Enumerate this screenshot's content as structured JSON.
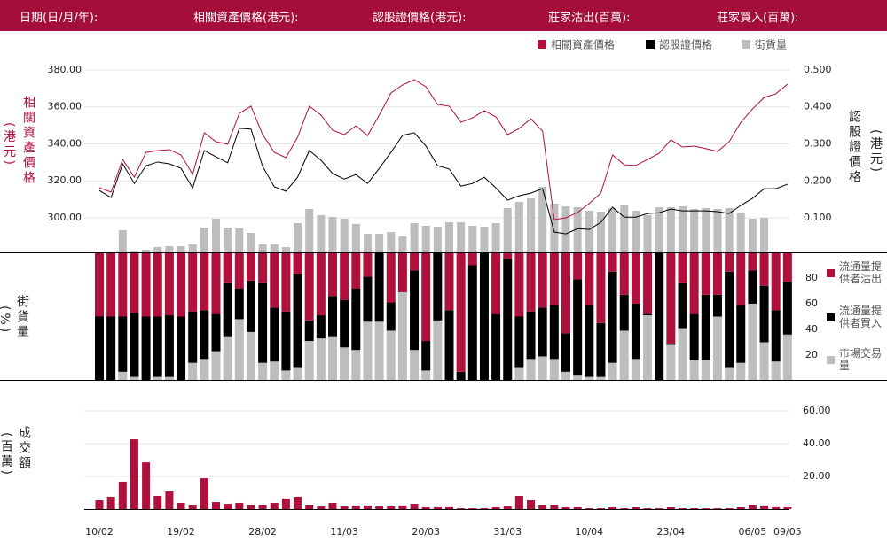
{
  "header": {
    "fields": [
      "日期(日/月/年):",
      "相關資產價格(港元):",
      "認股證價格(港元):",
      "莊家沽出(百萬):",
      "莊家買入(百萬):"
    ]
  },
  "chart_data": [
    {
      "type": "line",
      "ylabel": "相關資產價格",
      "ylabel_unit": "(港元)",
      "y2label": "認股證價格",
      "y2label_unit": "(港元)",
      "ylim": [
        281.3,
        389.1
      ],
      "yticks": [
        {
          "value": 300,
          "label": "300.00"
        },
        {
          "value": 320,
          "label": "320.00"
        },
        {
          "value": 340,
          "label": "340.00"
        },
        {
          "value": 360,
          "label": "360.00"
        },
        {
          "value": 380,
          "label": "380.00"
        }
      ],
      "y2lim": [
        0.007,
        0.545
      ],
      "y2ticks": [
        {
          "value": 0.1,
          "label": "0.100"
        },
        {
          "value": 0.2,
          "label": "0.200"
        },
        {
          "value": 0.3,
          "label": "0.300"
        },
        {
          "value": 0.4,
          "label": "0.400"
        },
        {
          "value": 0.5,
          "label": "0.500"
        }
      ],
      "y3lim": [
        0,
        225
      ],
      "grid": true,
      "legend": "top-right",
      "series": [
        {
          "name": "相關資產價格",
          "type": "line",
          "color": "#b0103c",
          "values": [
            316.3,
            313.9,
            331.6,
            322.0,
            335.4,
            336.4,
            336.9,
            334.0,
            323.5,
            346.0,
            341.2,
            339.8,
            356.5,
            360.4,
            345.0,
            335.4,
            332.6,
            343.6,
            360.4,
            355.6,
            347.4,
            345.0,
            349.8,
            344.5,
            355.6,
            367.5,
            371.9,
            374.7,
            370.9,
            361.3,
            360.4,
            351.7,
            354.1,
            358.0,
            354.6,
            345.0,
            348.4,
            353.6,
            346.9,
            299.0,
            300.0,
            302.9,
            307.7,
            313.4,
            334.0,
            328.7,
            328.3,
            331.6,
            335.0,
            342.2,
            338.3,
            338.8,
            337.4,
            335.9,
            341.2,
            351.7,
            358.9,
            365.1,
            367.1,
            372.3
          ]
        },
        {
          "name": "認股證價格",
          "type": "line",
          "axis": "y2",
          "color": "#000000",
          "values": [
            0.174,
            0.155,
            0.246,
            0.193,
            0.241,
            0.251,
            0.246,
            0.234,
            0.181,
            0.282,
            0.265,
            0.249,
            0.342,
            0.34,
            0.239,
            0.184,
            0.172,
            0.21,
            0.282,
            0.256,
            0.22,
            0.205,
            0.217,
            0.193,
            0.234,
            0.277,
            0.323,
            0.33,
            0.294,
            0.241,
            0.232,
            0.186,
            0.193,
            0.21,
            0.181,
            0.148,
            0.16,
            0.167,
            0.179,
            0.062,
            0.057,
            0.071,
            0.069,
            0.088,
            0.129,
            0.102,
            0.102,
            0.112,
            0.114,
            0.124,
            0.119,
            0.119,
            0.119,
            0.117,
            0.112,
            0.134,
            0.153,
            0.179,
            0.179,
            0.191
          ]
        },
        {
          "name": "街貨量",
          "type": "bar",
          "axis": "y3",
          "color": "#bdbdbd",
          "values": [
            0,
            0,
            25,
            2,
            3,
            6,
            7,
            7,
            9,
            28,
            38,
            28,
            27,
            22,
            9,
            9,
            6,
            33,
            49,
            42,
            40,
            38,
            32,
            21,
            21,
            23,
            18,
            33,
            30,
            29,
            34,
            34,
            30,
            29,
            33,
            50,
            57,
            61,
            74,
            55,
            52,
            51,
            47,
            46,
            50,
            53,
            47,
            42,
            51,
            51,
            52,
            49,
            50,
            49,
            50,
            44,
            38,
            39,
            0,
            0
          ]
        }
      ]
    },
    {
      "type": "stacked_bar",
      "ylabel": "街貨量",
      "ylabel_unit": "(%)",
      "ylim": [
        0,
        100
      ],
      "yticks": [
        20,
        40,
        60,
        80
      ],
      "legend": "right",
      "series": [
        {
          "name": "流通量提供者沽出",
          "color": "#b0103c",
          "values": [
            50,
            50,
            50,
            47,
            50,
            50,
            49,
            50,
            46,
            45,
            48,
            24,
            28,
            22,
            24,
            43,
            46,
            17,
            53,
            49,
            34,
            37,
            28,
            19,
            0,
            39,
            31,
            14,
            69,
            0,
            45,
            93,
            10,
            0,
            48,
            5,
            50,
            46,
            43,
            41,
            63,
            21,
            41,
            55,
            15,
            33,
            40,
            48,
            0,
            71,
            24,
            48,
            33,
            33,
            15,
            41,
            14,
            26,
            45,
            23
          ]
        },
        {
          "name": "流通量提供者買入",
          "color": "#000000",
          "values": [
            50,
            50,
            43,
            50,
            50,
            47,
            48,
            50,
            40,
            38,
            29,
            42,
            24,
            40,
            62,
            42,
            46,
            73,
            16,
            18,
            32,
            37,
            48,
            35,
            54,
            22,
            0,
            62,
            23,
            53,
            55,
            7,
            90,
            100,
            52,
            95,
            40,
            37,
            38,
            42,
            30,
            75,
            56,
            42,
            71,
            28,
            43,
            1,
            100,
            1,
            35,
            36,
            51,
            17,
            75,
            45,
            26,
            44,
            40,
            41
          ]
        },
        {
          "name": "市場交易量",
          "color": "#bdbdbd",
          "values": [
            0,
            0,
            7,
            3,
            0,
            3,
            3,
            0,
            14,
            17,
            23,
            34,
            48,
            38,
            14,
            15,
            8,
            10,
            31,
            33,
            34,
            26,
            24,
            46,
            46,
            39,
            69,
            24,
            8,
            47,
            0,
            0,
            0,
            0,
            0,
            0,
            10,
            17,
            19,
            17,
            7,
            4,
            3,
            3,
            14,
            39,
            17,
            51,
            0,
            28,
            41,
            16,
            16,
            50,
            10,
            14,
            60,
            30,
            15,
            36
          ]
        }
      ]
    },
    {
      "type": "bar",
      "ylabel": "成交額",
      "ylabel_unit": "(百萬)",
      "ylim": [
        0,
        64.9
      ],
      "yticks": [
        {
          "value": 20,
          "label": "20.00"
        },
        {
          "value": 40,
          "label": "40.00"
        },
        {
          "value": 60,
          "label": "60.00"
        }
      ],
      "grid": true,
      "color": "#b0103c",
      "categories": [
        "10/02",
        null,
        null,
        null,
        null,
        null,
        null,
        "19/02",
        null,
        null,
        null,
        null,
        null,
        null,
        "28/02",
        null,
        null,
        null,
        null,
        null,
        null,
        "11/03",
        null,
        null,
        null,
        null,
        null,
        null,
        "20/03",
        null,
        null,
        null,
        null,
        null,
        null,
        "31/03",
        null,
        null,
        null,
        null,
        null,
        null,
        "10/04",
        null,
        null,
        null,
        null,
        null,
        null,
        "23/04",
        null,
        null,
        null,
        null,
        null,
        null,
        "06/05",
        null,
        null,
        "09/05"
      ],
      "values": [
        5.4,
        7.6,
        16.8,
        42.7,
        28.6,
        8.1,
        10.8,
        3.8,
        2.7,
        18.9,
        4.3,
        3.2,
        3.8,
        2.7,
        2.7,
        3.8,
        6.5,
        7.6,
        2.7,
        1.6,
        3.8,
        1.6,
        2.2,
        2.2,
        1.6,
        1.6,
        2.2,
        3.2,
        1.1,
        1.1,
        1.1,
        0.5,
        0.5,
        0.5,
        1.1,
        1.6,
        8.1,
        5.4,
        2.7,
        2.7,
        1.1,
        1.1,
        0.5,
        0.5,
        1.1,
        0.5,
        1.1,
        0.5,
        0.5,
        1.1,
        0.5,
        0.5,
        0.5,
        0.5,
        0.5,
        1.1,
        2.7,
        2.2,
        1.1,
        1.1
      ]
    }
  ]
}
